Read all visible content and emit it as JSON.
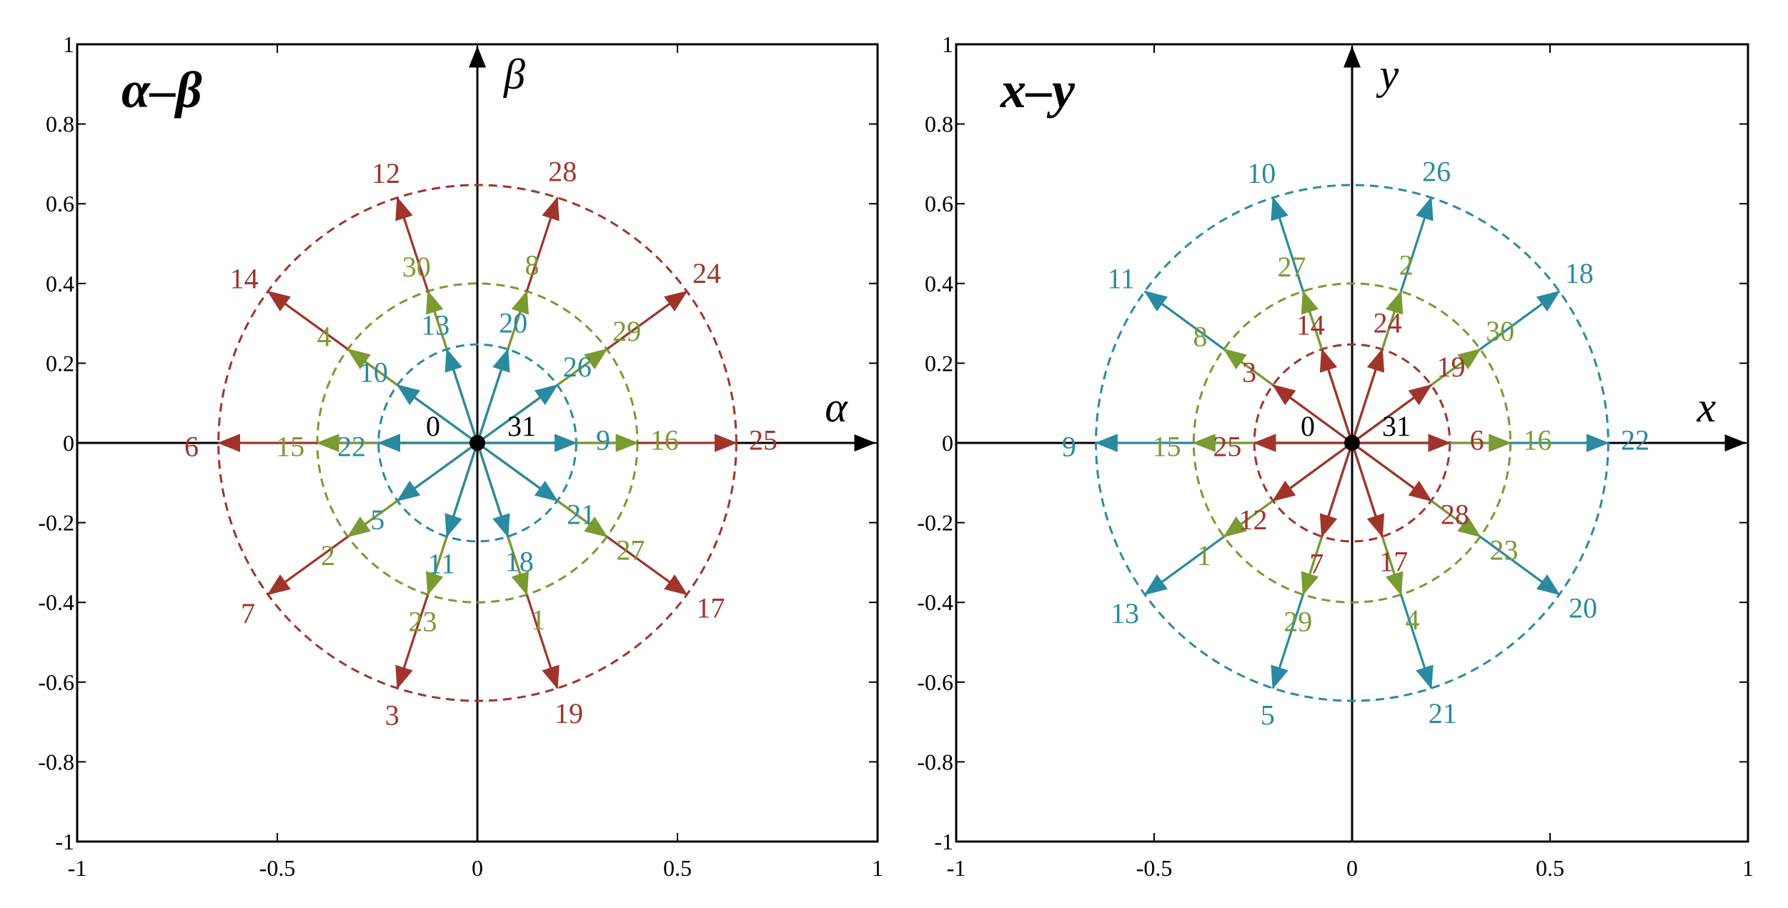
{
  "colors": {
    "red": "#A0342B",
    "green": "#7A9A32",
    "blue": "#2A8AA0",
    "axis": "#000000"
  },
  "chart_data": [
    {
      "type": "vector",
      "title": "α–β",
      "xlabel": "α",
      "ylabel": "β",
      "xlim": [
        -1,
        1
      ],
      "ylim": [
        -1,
        1
      ],
      "xticks": [
        "-1",
        "-0.5",
        "0",
        "0.5",
        "1"
      ],
      "yticks": [
        "1",
        "0.8",
        "0.6",
        "0.4",
        "0.2",
        "0",
        "-0.2",
        "-0.4",
        "-0.6",
        "-0.8",
        "-1"
      ],
      "circles": [
        {
          "radius": 0.647,
          "color": "red"
        },
        {
          "radius": 0.4,
          "color": "green"
        },
        {
          "radius": 0.247,
          "color": "blue"
        }
      ],
      "origin_labels": [
        "0",
        "31"
      ],
      "series": [
        {
          "color": "red",
          "magnitude": 0.647,
          "vectors": [
            {
              "label": "25",
              "angle": 0
            },
            {
              "label": "24",
              "angle": 36
            },
            {
              "label": "28",
              "angle": 72
            },
            {
              "label": "12",
              "angle": 108
            },
            {
              "label": "14",
              "angle": 144
            },
            {
              "label": "6",
              "angle": 180
            },
            {
              "label": "7",
              "angle": 216
            },
            {
              "label": "3",
              "angle": 252
            },
            {
              "label": "19",
              "angle": 288
            },
            {
              "label": "17",
              "angle": 324
            }
          ]
        },
        {
          "color": "green",
          "magnitude": 0.4,
          "vectors": [
            {
              "label": "16",
              "angle": 0
            },
            {
              "label": "29",
              "angle": 36
            },
            {
              "label": "8",
              "angle": 72
            },
            {
              "label": "30",
              "angle": 108
            },
            {
              "label": "4",
              "angle": 144
            },
            {
              "label": "15",
              "angle": 180
            },
            {
              "label": "2",
              "angle": 216
            },
            {
              "label": "23",
              "angle": 252
            },
            {
              "label": "1",
              "angle": 288
            },
            {
              "label": "27",
              "angle": 324
            }
          ]
        },
        {
          "color": "blue",
          "magnitude": 0.247,
          "vectors": [
            {
              "label": "9",
              "angle": 0
            },
            {
              "label": "26",
              "angle": 36
            },
            {
              "label": "20",
              "angle": 72
            },
            {
              "label": "13",
              "angle": 108
            },
            {
              "label": "10",
              "angle": 144
            },
            {
              "label": "22",
              "angle": 180
            },
            {
              "label": "5",
              "angle": 216
            },
            {
              "label": "11",
              "angle": 252
            },
            {
              "label": "18",
              "angle": 288
            },
            {
              "label": "21",
              "angle": 324
            }
          ]
        }
      ]
    },
    {
      "type": "vector",
      "title": "x–y",
      "xlabel": "x",
      "ylabel": "y",
      "xlim": [
        -1,
        1
      ],
      "ylim": [
        -1,
        1
      ],
      "xticks": [
        "-1",
        "-0.5",
        "0",
        "0.5",
        "1"
      ],
      "yticks": [
        "1",
        "0.8",
        "0.6",
        "0.4",
        "0.2",
        "0",
        "-0.2",
        "-0.4",
        "-0.6",
        "-0.8",
        "-1"
      ],
      "circles": [
        {
          "radius": 0.647,
          "color": "blue"
        },
        {
          "radius": 0.4,
          "color": "green"
        },
        {
          "radius": 0.247,
          "color": "red"
        }
      ],
      "origin_labels": [
        "0",
        "31"
      ],
      "series": [
        {
          "color": "blue",
          "magnitude": 0.647,
          "vectors": [
            {
              "label": "22",
              "angle": 0
            },
            {
              "label": "18",
              "angle": 36
            },
            {
              "label": "26",
              "angle": 72
            },
            {
              "label": "10",
              "angle": 108
            },
            {
              "label": "11",
              "angle": 144
            },
            {
              "label": "9",
              "angle": 180
            },
            {
              "label": "13",
              "angle": 216
            },
            {
              "label": "5",
              "angle": 252
            },
            {
              "label": "21",
              "angle": 288
            },
            {
              "label": "20",
              "angle": 324
            }
          ]
        },
        {
          "color": "green",
          "magnitude": 0.4,
          "vectors": [
            {
              "label": "16",
              "angle": 0
            },
            {
              "label": "30",
              "angle": 36
            },
            {
              "label": "2",
              "angle": 72
            },
            {
              "label": "27",
              "angle": 108
            },
            {
              "label": "8",
              "angle": 144
            },
            {
              "label": "15",
              "angle": 180
            },
            {
              "label": "1",
              "angle": 216
            },
            {
              "label": "29",
              "angle": 252
            },
            {
              "label": "4",
              "angle": 288
            },
            {
              "label": "23",
              "angle": 324
            }
          ]
        },
        {
          "color": "red",
          "magnitude": 0.247,
          "vectors": [
            {
              "label": "6",
              "angle": 0
            },
            {
              "label": "19",
              "angle": 36
            },
            {
              "label": "24",
              "angle": 72
            },
            {
              "label": "14",
              "angle": 108
            },
            {
              "label": "3",
              "angle": 144
            },
            {
              "label": "25",
              "angle": 180
            },
            {
              "label": "12",
              "angle": 216
            },
            {
              "label": "7",
              "angle": 252
            },
            {
              "label": "17",
              "angle": 288
            },
            {
              "label": "28",
              "angle": 324
            }
          ]
        }
      ]
    }
  ]
}
